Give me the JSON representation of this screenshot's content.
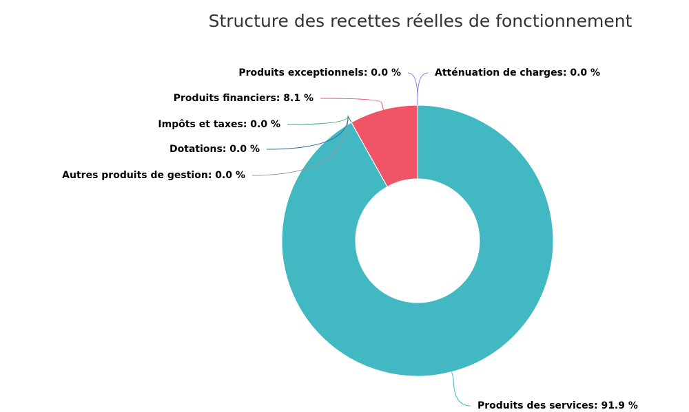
{
  "chart_data": {
    "type": "pie",
    "title": "Structure des recettes réelles de fonctionnement",
    "values": [
      91.9,
      0.0,
      0.0,
      0.0,
      8.1,
      0.0,
      0.0
    ],
    "value_labels": [
      "Produits des services: 91.9 %",
      "Autres produits de gestion: 0.0 %",
      "Dotations: 0.0 %",
      "Impôts et taxes: 0.0 %",
      "Produits financiers: 8.1 %",
      "Produits exceptionnels: 0.0 %",
      "Atténuation de charges: 0.0 %"
    ],
    "colors": [
      "#42b8c2",
      "#9a9a9a",
      "#2d6b9e",
      "#3fa36b",
      "#ef5566",
      "#6f8fd8",
      "#8a7ae6"
    ],
    "donut": true
  }
}
